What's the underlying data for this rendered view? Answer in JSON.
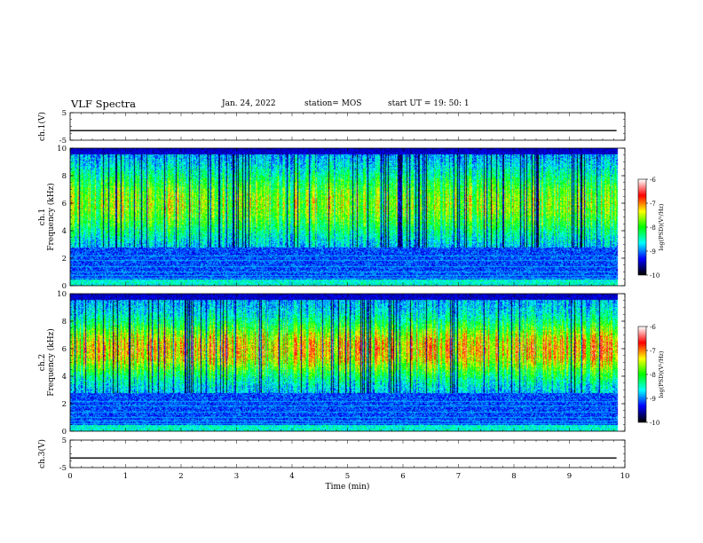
{
  "header": {
    "title": "VLF Spectra",
    "date": "Jan. 24, 2022",
    "station": "station= MOS",
    "start": "start  UT =   19: 50: 1"
  },
  "chart_data": {
    "type": "heatmap",
    "title": "VLF Spectra",
    "xlabel": "Time  (min)",
    "xlim": [
      0,
      10
    ],
    "x_ticks": [
      "0",
      "1",
      "2",
      "3",
      "4",
      "5",
      "6",
      "7",
      "8",
      "9",
      "10"
    ],
    "panels": [
      {
        "name": "ch.1(V)",
        "kind": "line",
        "ylabel": "ch.1(V)",
        "ylim": [
          -5,
          5
        ],
        "y_ticks": [
          "5",
          "-5"
        ],
        "level": -1.5,
        "t_end": 9.85
      },
      {
        "name": "ch.1 Frequency (kHz)",
        "kind": "spectrogram",
        "ylabel_1": "ch.1",
        "ylabel_2": "Frequency (kHz)",
        "ylim": [
          0,
          10
        ],
        "y_ticks": [
          "0",
          "2",
          "4",
          "6",
          "8",
          "10"
        ],
        "band_center_khz": 6.0,
        "band_width_khz": 2.6,
        "intensity": 0.82,
        "t_end": 9.85,
        "colorbar": {
          "label": "log(PSD)(V²/Hz)",
          "range": [
            -10,
            -6
          ],
          "ticks": [
            "-6",
            "-7",
            "-8",
            "-9",
            "-10"
          ]
        }
      },
      {
        "name": "ch.2 Frequency (kHz)",
        "kind": "spectrogram",
        "ylabel_1": "ch.2",
        "ylabel_2": "Frequency (kHz)",
        "ylim": [
          0,
          10
        ],
        "y_ticks": [
          "0",
          "2",
          "4",
          "6",
          "8",
          "10"
        ],
        "band_center_khz": 6.0,
        "band_width_khz": 2.0,
        "intensity": 1.0,
        "t_end": 9.85,
        "colorbar": {
          "label": "log(PSD)(V²/Hz)",
          "range": [
            -10,
            -6
          ],
          "ticks": [
            "-6",
            "-7",
            "-8",
            "-9",
            "-10"
          ]
        }
      },
      {
        "name": "ch.3(V)",
        "kind": "line",
        "ylabel": "ch.3(V)",
        "ylim": [
          -5,
          5
        ],
        "y_ticks": [
          "5",
          "-5"
        ],
        "level": -1.5,
        "t_end": 9.85
      }
    ],
    "colormap": [
      "#ffffff",
      "#ff0000",
      "#ffff00",
      "#00ff00",
      "#00ffff",
      "#0000ff",
      "#000000"
    ]
  }
}
